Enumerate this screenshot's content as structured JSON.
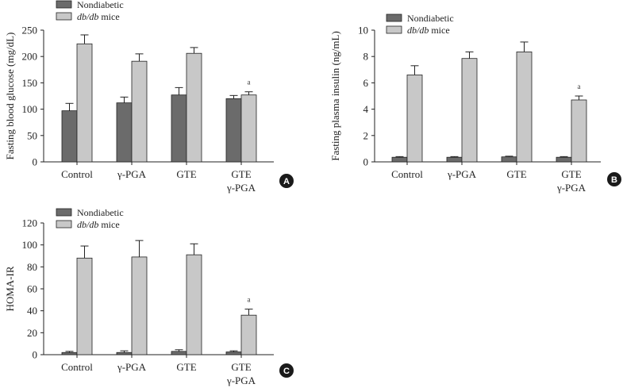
{
  "colors": {
    "nondiabetic": "#6b6b6b",
    "dbdb": "#c8c8c8",
    "axis": "#222222",
    "badge": "#1a1a1a"
  },
  "legend": {
    "nondiabetic": "Nondiabetic",
    "dbdb_italic": "db/db",
    "dbdb_rest": " mice"
  },
  "chart_data": [
    {
      "panel": "A",
      "type": "bar",
      "ylabel": "Fasting blood glucose (mg/dL)",
      "ylim": [
        0,
        250
      ],
      "yticks": [
        "0",
        "50",
        "100",
        "150",
        "200",
        "250"
      ],
      "categories": [
        [
          "Control"
        ],
        [
          "γ-PGA"
        ],
        [
          "GTE"
        ],
        [
          "GTE",
          "γ-PGA"
        ]
      ],
      "series": [
        {
          "name": "Nondiabetic",
          "values": [
            97,
            112,
            127,
            120
          ],
          "errors": [
            14,
            11,
            14,
            6
          ]
        },
        {
          "name": "db/db mice",
          "values": [
            224,
            191,
            206,
            127
          ],
          "errors": [
            17,
            14,
            11,
            6
          ]
        }
      ],
      "annotations": [
        {
          "category": 3,
          "series": 1,
          "text": "a"
        }
      ],
      "badge": "A"
    },
    {
      "panel": "B",
      "type": "bar",
      "ylabel": "Fasting plasma insulin (ng/mL)",
      "ylim": [
        0,
        10
      ],
      "yticks": [
        "0",
        "2",
        "4",
        "6",
        "8",
        "10"
      ],
      "categories": [
        [
          "Control"
        ],
        [
          "γ-PGA"
        ],
        [
          "GTE"
        ],
        [
          "GTE",
          "γ-PGA"
        ]
      ],
      "series": [
        {
          "name": "Nondiabetic",
          "values": [
            0.35,
            0.35,
            0.38,
            0.35
          ],
          "errors": [
            0.05,
            0.05,
            0.05,
            0.05
          ]
        },
        {
          "name": "db/db mice",
          "values": [
            6.6,
            7.85,
            8.35,
            4.7
          ],
          "errors": [
            0.7,
            0.5,
            0.75,
            0.3
          ]
        }
      ],
      "annotations": [
        {
          "category": 3,
          "series": 1,
          "text": "a"
        }
      ],
      "badge": "B"
    },
    {
      "panel": "C",
      "type": "bar",
      "ylabel": "HOMA-IR",
      "ylim": [
        0,
        120
      ],
      "yticks": [
        "0",
        "20",
        "40",
        "60",
        "80",
        "100",
        "120"
      ],
      "categories": [
        [
          "Control"
        ],
        [
          "γ-PGA"
        ],
        [
          "GTE"
        ],
        [
          "GTE",
          "γ-PGA"
        ]
      ],
      "series": [
        {
          "name": "Nondiabetic",
          "values": [
            2,
            2,
            3,
            2.5
          ],
          "errors": [
            1,
            1.5,
            1.5,
            1
          ]
        },
        {
          "name": "db/db mice",
          "values": [
            88,
            89,
            91,
            36
          ],
          "errors": [
            11,
            15,
            10,
            5.5
          ]
        }
      ],
      "annotations": [
        {
          "category": 3,
          "series": 1,
          "text": "a"
        }
      ],
      "badge": "C"
    }
  ]
}
